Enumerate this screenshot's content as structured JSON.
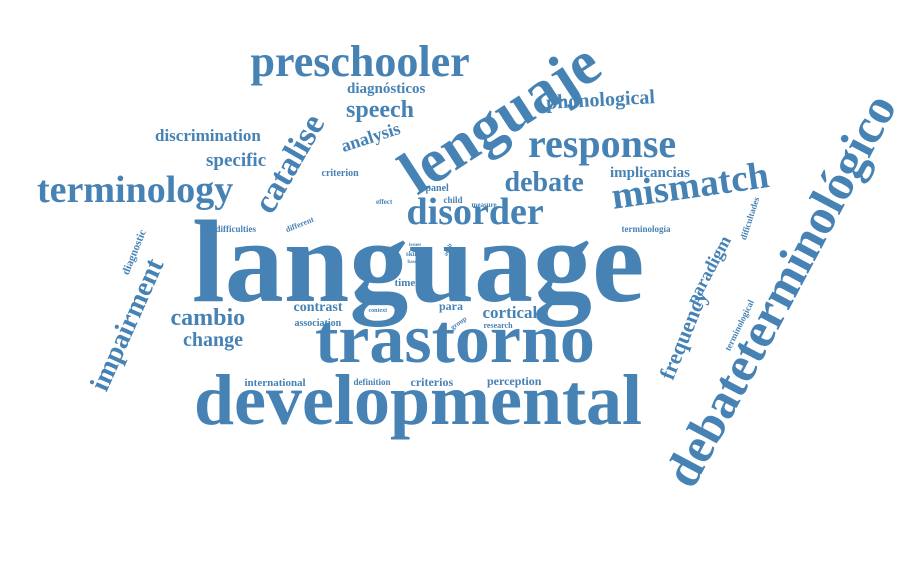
{
  "colors": {
    "word": "#4682b4",
    "background": "#ffffff"
  },
  "words": [
    {
      "text": "language"
    },
    {
      "text": "developmental"
    },
    {
      "text": "trastorno"
    },
    {
      "text": "lenguaje"
    },
    {
      "text": "debateterminológico"
    },
    {
      "text": "preschooler"
    },
    {
      "text": "response"
    },
    {
      "text": "terminology"
    },
    {
      "text": "mismatch"
    },
    {
      "text": "disorder"
    },
    {
      "text": "debate"
    },
    {
      "text": "catalise"
    },
    {
      "text": "impairment"
    },
    {
      "text": "speech"
    },
    {
      "text": "phonological"
    },
    {
      "text": "diagnósticos"
    },
    {
      "text": "analysis"
    },
    {
      "text": "discrimination"
    },
    {
      "text": "specific"
    },
    {
      "text": "implicancias"
    },
    {
      "text": "frequency"
    },
    {
      "text": "paradigm"
    },
    {
      "text": "cambio"
    },
    {
      "text": "change"
    },
    {
      "text": "contrast"
    },
    {
      "text": "cortical"
    },
    {
      "text": "para"
    },
    {
      "text": "time"
    },
    {
      "text": "association"
    },
    {
      "text": "international"
    },
    {
      "text": "definition"
    },
    {
      "text": "criterios"
    },
    {
      "text": "perception"
    },
    {
      "text": "criterion"
    },
    {
      "text": "panel"
    },
    {
      "text": "child"
    },
    {
      "text": "measure"
    },
    {
      "text": "difficulties"
    },
    {
      "text": "different"
    },
    {
      "text": "diagnostic"
    },
    {
      "text": "terminología"
    },
    {
      "text": "dificultades"
    },
    {
      "text": "terminological"
    },
    {
      "text": "effect"
    },
    {
      "text": "skill"
    },
    {
      "text": "base"
    },
    {
      "text": "issues"
    },
    {
      "text": "adult"
    },
    {
      "text": "context"
    },
    {
      "text": "group"
    },
    {
      "text": "research"
    }
  ]
}
